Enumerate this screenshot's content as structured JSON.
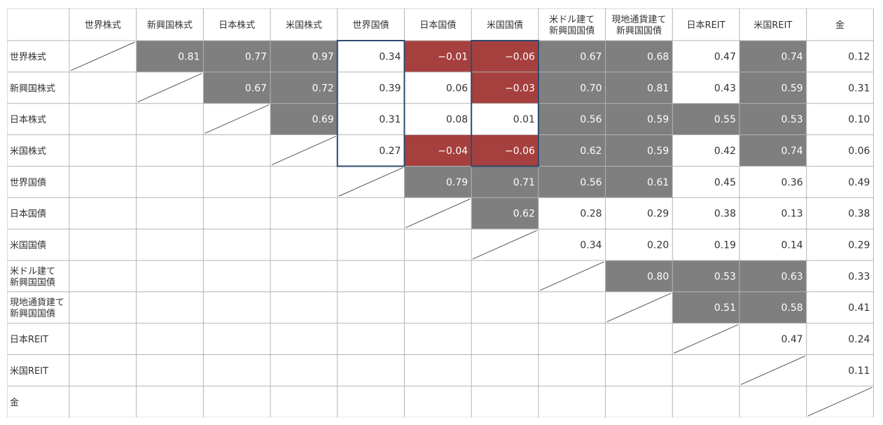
{
  "chart_data": {
    "type": "heatmap",
    "labels": [
      "世界株式",
      "新興国株式",
      "日本株式",
      "米国株式",
      "世界国債",
      "日本国債",
      "米国国債",
      "米ドル建て\n新興国国債",
      "現地通貨建て\n新興国国債",
      "日本REIT",
      "米国REIT",
      "金"
    ],
    "values": [
      [
        null,
        0.81,
        0.77,
        0.97,
        0.34,
        -0.01,
        -0.06,
        0.67,
        0.68,
        0.47,
        0.74,
        0.12
      ],
      [
        null,
        null,
        0.67,
        0.72,
        0.39,
        0.06,
        -0.03,
        0.7,
        0.81,
        0.43,
        0.59,
        0.31
      ],
      [
        null,
        null,
        null,
        0.69,
        0.31,
        0.08,
        0.01,
        0.56,
        0.59,
        0.55,
        0.53,
        0.1
      ],
      [
        null,
        null,
        null,
        null,
        0.27,
        -0.04,
        -0.06,
        0.62,
        0.59,
        0.42,
        0.74,
        0.06
      ],
      [
        null,
        null,
        null,
        null,
        null,
        0.79,
        0.71,
        0.56,
        0.61,
        0.45,
        0.36,
        0.49
      ],
      [
        null,
        null,
        null,
        null,
        null,
        null,
        0.62,
        0.28,
        0.29,
        0.38,
        0.13,
        0.38
      ],
      [
        null,
        null,
        null,
        null,
        null,
        null,
        null,
        0.34,
        0.2,
        0.19,
        0.14,
        0.29
      ],
      [
        null,
        null,
        null,
        null,
        null,
        null,
        null,
        null,
        0.8,
        0.53,
        0.63,
        0.33
      ],
      [
        null,
        null,
        null,
        null,
        null,
        null,
        null,
        null,
        null,
        0.51,
        0.58,
        0.41
      ],
      [
        null,
        null,
        null,
        null,
        null,
        null,
        null,
        null,
        null,
        null,
        0.47,
        0.24
      ],
      [
        null,
        null,
        null,
        null,
        null,
        null,
        null,
        null,
        null,
        null,
        null,
        0.11
      ],
      [
        null,
        null,
        null,
        null,
        null,
        null,
        null,
        null,
        null,
        null,
        null,
        null
      ]
    ],
    "highlighted_columns": [
      4,
      6
    ],
    "highlighted_rows": [
      0,
      3
    ],
    "colors": {
      "high": "#7f7f7f",
      "negative": "#a6403e",
      "neutral": "#ffffff",
      "grid": "#b4b4b4",
      "highlight_border": "#2e4a6e",
      "text_dark": "#333333",
      "text_light": "#ffffff"
    }
  }
}
